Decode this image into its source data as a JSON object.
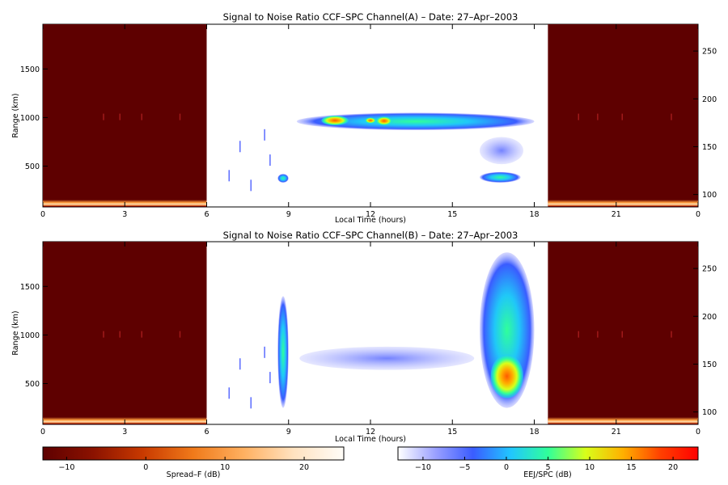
{
  "chart_data": [
    {
      "type": "heatmap",
      "title": "Signal to Noise Ratio CCF–SPC Channel(A) – Date: 27–Apr–2003",
      "xlabel": "Local Time (hours)",
      "ylabel": "Range (km)",
      "xlim": [
        0,
        24
      ],
      "ylim": [
        80,
        1960
      ],
      "xticks": [
        "0",
        "3",
        "6",
        "9",
        "12",
        "15",
        "18",
        "21",
        "0"
      ],
      "yticks": [
        "500",
        "1000",
        "1500"
      ],
      "yticks_values": [
        500,
        1000,
        1500
      ],
      "y2ticks": [
        "100",
        "150",
        "200",
        "250"
      ],
      "y2ticks_values": [
        100,
        150,
        200,
        250
      ],
      "spreadF_windows": [
        [
          0,
          6
        ],
        [
          18.5,
          24
        ]
      ],
      "echoes": [
        {
          "t0": 9.3,
          "t1": 18.0,
          "r0": 870,
          "r1": 1050,
          "level": "mid"
        },
        {
          "t0": 10.2,
          "t1": 11.2,
          "r0": 920,
          "r1": 1020,
          "level": "high"
        },
        {
          "t0": 11.8,
          "t1": 12.2,
          "r0": 940,
          "r1": 1000,
          "level": "high"
        },
        {
          "t0": 12.2,
          "t1": 12.8,
          "r0": 920,
          "r1": 1010,
          "level": "high"
        },
        {
          "t0": 16.0,
          "t1": 17.5,
          "r0": 330,
          "r1": 440,
          "level": "mid"
        },
        {
          "t0": 8.6,
          "t1": 9.0,
          "r0": 330,
          "r1": 420,
          "level": "mid"
        },
        {
          "t0": 16.0,
          "t1": 17.6,
          "r0": 520,
          "r1": 800,
          "level": "faint"
        }
      ]
    },
    {
      "type": "heatmap",
      "title": "Signal to Noise Ratio CCF–SPC Channel(B) – Date: 27–Apr–2003",
      "xlabel": "Local Time (hours)",
      "ylabel": "Range (km)",
      "xlim": [
        0,
        24
      ],
      "ylim": [
        80,
        1960
      ],
      "xticks": [
        "0",
        "3",
        "6",
        "9",
        "12",
        "15",
        "18",
        "21",
        "0"
      ],
      "yticks": [
        "500",
        "1000",
        "1500"
      ],
      "yticks_values": [
        500,
        1000,
        1500
      ],
      "y2ticks": [
        "100",
        "150",
        "200",
        "250"
      ],
      "y2ticks_values": [
        100,
        150,
        200,
        250
      ],
      "spreadF_windows": [
        [
          0,
          6
        ],
        [
          18.5,
          24
        ]
      ],
      "echoes": [
        {
          "t0": 9.4,
          "t1": 15.8,
          "r0": 640,
          "r1": 880,
          "level": "faint"
        },
        {
          "t0": 8.6,
          "t1": 9.0,
          "r0": 250,
          "r1": 1400,
          "level": "mid"
        },
        {
          "t0": 16.0,
          "t1": 18.0,
          "r0": 250,
          "r1": 1850,
          "level": "mid"
        },
        {
          "t0": 16.4,
          "t1": 17.6,
          "r0": 350,
          "r1": 800,
          "level": "high"
        }
      ]
    }
  ],
  "colorbars": [
    {
      "label": "Spread–F (dB)",
      "ticks": [
        "−10",
        "0",
        "10",
        "20"
      ],
      "tick_values": [
        -10,
        0,
        10,
        20
      ],
      "range": [
        -13,
        25
      ],
      "colors": [
        "#5e0000",
        "#8b1200",
        "#c93a00",
        "#f07a1a",
        "#ffb060",
        "#ffe2c0",
        "#fffdf8"
      ]
    },
    {
      "label": "EEJ/SPC (dB)",
      "ticks": [
        "−10",
        "−5",
        "0",
        "5",
        "10",
        "15",
        "20"
      ],
      "tick_values": [
        -10,
        -5,
        0,
        5,
        10,
        15,
        20
      ],
      "range": [
        -13,
        23
      ],
      "colors": [
        "#ffffff",
        "#9aa0ff",
        "#3a5cff",
        "#21c6ff",
        "#30ff9a",
        "#d8ff1a",
        "#ffb000",
        "#ff4000",
        "#ff0000"
      ]
    }
  ],
  "colors": {
    "spreadF_background": "#5e0000",
    "spreadF_floor": "#ff9a3a",
    "echo_faint": "#5b6cff",
    "echo_mid": "#20c8f8",
    "echo_high": "#ff6a00"
  }
}
